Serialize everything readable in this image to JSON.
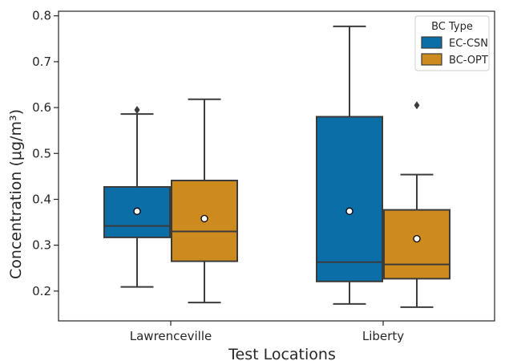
{
  "chart_data": {
    "type": "box",
    "xlabel": "Test Locations",
    "ylabel": "Concentration (μg/m³)",
    "ylim": [
      0.135,
      0.81
    ],
    "yticks": [
      0.2,
      0.3,
      0.4,
      0.5,
      0.6,
      0.7,
      0.8
    ],
    "categories": [
      "Lawrenceville",
      "Liberty"
    ],
    "legend": {
      "title": "BC Type",
      "position": "top-right"
    },
    "grid": false,
    "series": [
      {
        "name": "EC-CSN",
        "color": "#0b6ea6",
        "boxes": [
          {
            "category": "Lawrenceville",
            "whisker_low": 0.209,
            "q1": 0.317,
            "median": 0.342,
            "q3": 0.427,
            "whisker_high": 0.586,
            "mean": 0.374,
            "outliers": [
              0.595
            ]
          },
          {
            "category": "Liberty",
            "whisker_low": 0.172,
            "q1": 0.221,
            "median": 0.263,
            "q3": 0.58,
            "whisker_high": 0.777,
            "mean": 0.374,
            "outliers": []
          }
        ]
      },
      {
        "name": "BC-OPT",
        "color": "#cc8a1f",
        "boxes": [
          {
            "category": "Lawrenceville",
            "whisker_low": 0.175,
            "q1": 0.265,
            "median": 0.33,
            "q3": 0.441,
            "whisker_high": 0.618,
            "mean": 0.358,
            "outliers": []
          },
          {
            "category": "Liberty",
            "whisker_low": 0.165,
            "q1": 0.227,
            "median": 0.258,
            "q3": 0.377,
            "whisker_high": 0.454,
            "mean": 0.314,
            "outliers": [
              0.605
            ]
          }
        ]
      }
    ]
  }
}
